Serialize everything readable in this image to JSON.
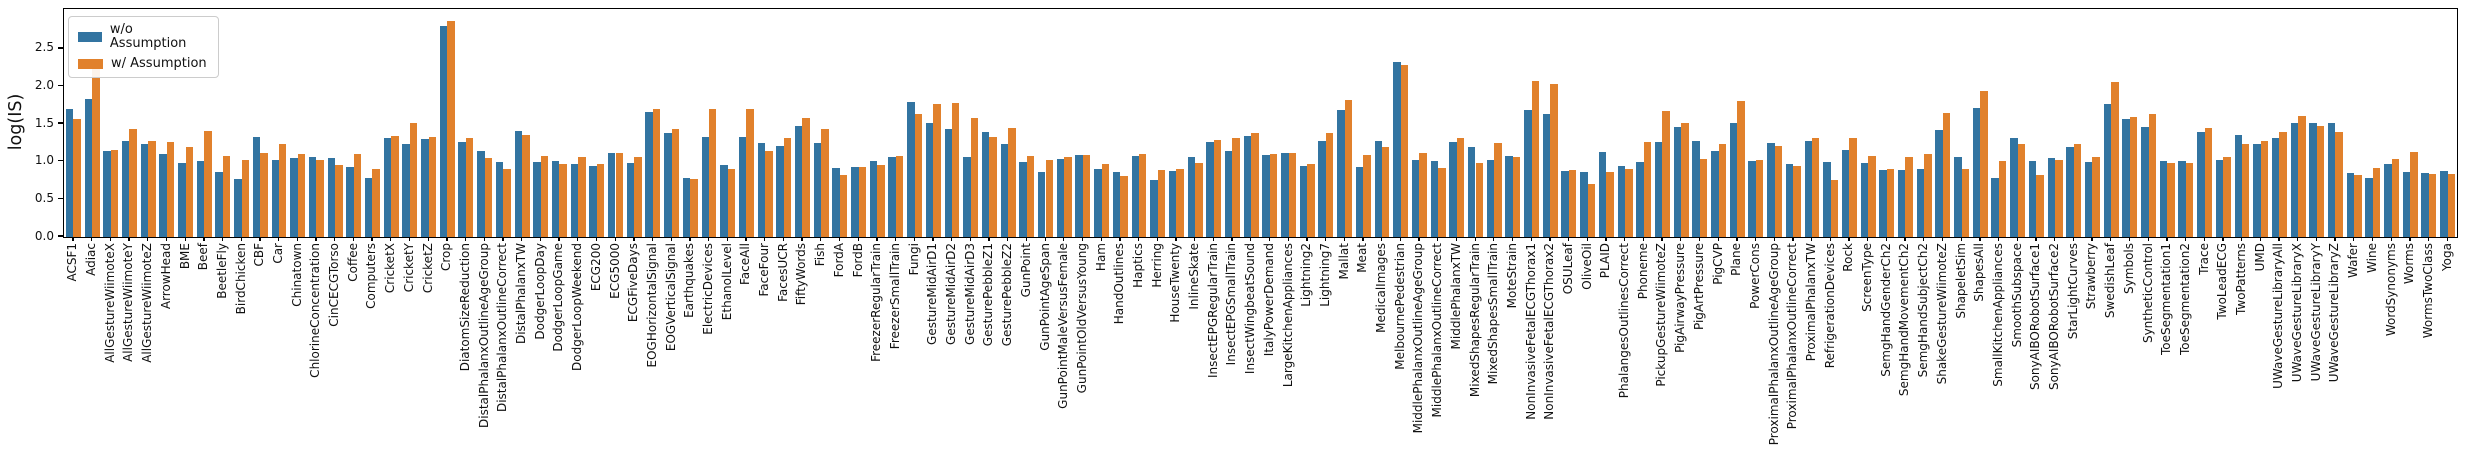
{
  "chart_data": {
    "type": "bar",
    "title": "",
    "xlabel": "",
    "ylabel": "log(IS)",
    "ylim": [
      0,
      3.03
    ],
    "yticks": [
      0.0,
      0.5,
      1.0,
      1.5,
      2.0,
      2.5
    ],
    "grid": false,
    "legend_position": "upper-left",
    "colors": [
      "#3274a1",
      "#e1812c"
    ],
    "categories": [
      "ACSF1",
      "Adiac",
      "AllGestureWiimoteX",
      "AllGestureWiimoteY",
      "AllGestureWiimoteZ",
      "ArrowHead",
      "BME",
      "Beef",
      "BeetleFly",
      "BirdChicken",
      "CBF",
      "Car",
      "Chinatown",
      "ChlorineConcentration",
      "CinCECGTorso",
      "Coffee",
      "Computers",
      "CricketX",
      "CricketY",
      "CricketZ",
      "Crop",
      "DiatomSizeReduction",
      "DistalPhalanxOutlineAgeGroup",
      "DistalPhalanxOutlineCorrect",
      "DistalPhalanxTW",
      "DodgerLoopDay",
      "DodgerLoopGame",
      "DodgerLoopWeekend",
      "ECG200",
      "ECG5000",
      "ECGFiveDays",
      "EOGHorizontalSignal",
      "EOGVerticalSignal",
      "Earthquakes",
      "ElectricDevices",
      "EthanolLevel",
      "FaceAll",
      "FaceFour",
      "FacesUCR",
      "FiftyWords",
      "Fish",
      "FordA",
      "FordB",
      "FreezerRegularTrain",
      "FreezerSmallTrain",
      "Fungi",
      "GestureMidAirD1",
      "GestureMidAirD2",
      "GestureMidAirD3",
      "GesturePebbleZ1",
      "GesturePebbleZ2",
      "GunPoint",
      "GunPointAgeSpan",
      "GunPointMaleVersusFemale",
      "GunPointOldVersusYoung",
      "Ham",
      "HandOutlines",
      "Haptics",
      "Herring",
      "HouseTwenty",
      "InlineSkate",
      "InsectEPGRegularTrain",
      "InsectEPGSmallTrain",
      "InsectWingbeatSound",
      "ItalyPowerDemand",
      "LargeKitchenAppliances",
      "Lightning2",
      "Lightning7",
      "Mallat",
      "Meat",
      "MedicalImages",
      "MelbournePedestrian",
      "MiddlePhalanxOutlineAgeGroup",
      "MiddlePhalanxOutlineCorrect",
      "MiddlePhalanxTW",
      "MixedShapesRegularTrain",
      "MixedShapesSmallTrain",
      "MoteStrain",
      "NonInvasiveFetalECGThorax1",
      "NonInvasiveFetalECGThorax2",
      "OSULeaf",
      "OliveOil",
      "PLAID",
      "PhalangesOutlinesCorrect",
      "Phoneme",
      "PickupGestureWiimoteZ",
      "PigAirwayPressure",
      "PigArtPressure",
      "PigCVP",
      "Plane",
      "PowerCons",
      "ProximalPhalanxOutlineAgeGroup",
      "ProximalPhalanxOutlineCorrect",
      "ProximalPhalanxTW",
      "RefrigerationDevices",
      "Rock",
      "ScreenType",
      "SemgHandGenderCh2",
      "SemgHandMovementCh2",
      "SemgHandSubjectCh2",
      "ShakeGestureWiimoteZ",
      "ShapeletSim",
      "ShapesAll",
      "SmallKitchenAppliances",
      "SmoothSubspace",
      "SonyAIBORobotSurface1",
      "SonyAIBORobotSurface2",
      "StarLightCurves",
      "Strawberry",
      "SwedishLeaf",
      "Symbols",
      "SyntheticControl",
      "ToeSegmentation1",
      "ToeSegmentation2",
      "Trace",
      "TwoLeadECG",
      "TwoPatterns",
      "UMD",
      "UWaveGestureLibraryAll",
      "UWaveGestureLibraryX",
      "UWaveGestureLibraryY",
      "UWaveGestureLibraryZ",
      "Wafer",
      "Wine",
      "WordSynonyms",
      "Worms",
      "WormsTwoClass",
      "Yoga"
    ],
    "series": [
      {
        "name": "w/o Assumption",
        "values": [
          1.7,
          1.83,
          1.14,
          1.28,
          1.24,
          1.11,
          0.99,
          1.01,
          0.86,
          0.77,
          1.33,
          1.02,
          1.05,
          1.06,
          1.05,
          0.93,
          0.78,
          1.31,
          1.24,
          1.3,
          2.8,
          1.26,
          1.15,
          1.0,
          1.41,
          1.0,
          1.01,
          0.97,
          0.94,
          1.12,
          0.98,
          1.66,
          1.38,
          0.79,
          1.33,
          0.96,
          1.33,
          1.25,
          1.21,
          1.47,
          1.25,
          0.92,
          0.93,
          1.01,
          1.06,
          1.8,
          1.51,
          1.44,
          1.07,
          1.4,
          1.23,
          1.0,
          0.87,
          1.04,
          1.09,
          0.9,
          0.86,
          1.08,
          0.76,
          0.88,
          1.06,
          1.26,
          1.15,
          1.34,
          1.09,
          1.12,
          0.94,
          1.28,
          1.69,
          0.93,
          1.27,
          2.32,
          1.02,
          1.01,
          1.26,
          1.2,
          1.03,
          1.08,
          1.69,
          1.64,
          0.88,
          0.86,
          1.13,
          0.95,
          1.0,
          1.26,
          1.46,
          1.27,
          1.15,
          1.51,
          1.01,
          1.25,
          0.97,
          1.28,
          1.0,
          1.16,
          0.99,
          0.89,
          0.89,
          0.91,
          1.42,
          1.06,
          1.72,
          0.78,
          1.32,
          1.01,
          1.05,
          1.2,
          1.0,
          1.77,
          1.57,
          1.46,
          1.01,
          1.01,
          1.39,
          1.03,
          1.35,
          1.24,
          1.31,
          1.52,
          1.52,
          1.52,
          0.85,
          0.78,
          0.97,
          0.87,
          0.85,
          0.88
        ]
      },
      {
        "name": "w/ Assumption",
        "values": [
          1.57,
          2.25,
          1.16,
          1.43,
          1.27,
          1.26,
          1.2,
          1.41,
          1.08,
          1.03,
          1.12,
          1.24,
          1.1,
          1.03,
          0.96,
          1.1,
          0.9,
          1.34,
          1.51,
          1.33,
          2.87,
          1.32,
          1.05,
          0.9,
          1.35,
          1.08,
          0.97,
          1.07,
          0.97,
          1.12,
          1.06,
          1.7,
          1.44,
          0.77,
          1.7,
          0.9,
          1.7,
          1.14,
          1.32,
          1.58,
          1.44,
          0.83,
          0.93,
          0.96,
          1.08,
          1.63,
          1.77,
          1.78,
          1.58,
          1.33,
          1.45,
          1.08,
          1.02,
          1.07,
          1.09,
          0.97,
          0.81,
          1.11,
          0.89,
          0.9,
          0.98,
          1.29,
          1.32,
          1.38,
          1.1,
          1.12,
          0.97,
          1.38,
          1.82,
          1.09,
          1.2,
          2.29,
          1.12,
          0.92,
          1.31,
          0.99,
          1.25,
          1.07,
          2.07,
          2.03,
          0.89,
          0.71,
          0.87,
          0.9,
          1.26,
          1.68,
          1.51,
          1.04,
          1.23,
          1.81,
          1.03,
          1.21,
          0.95,
          1.31,
          0.76,
          1.31,
          1.08,
          0.9,
          1.06,
          1.1,
          1.65,
          0.9,
          1.94,
          1.01,
          1.23,
          0.82,
          1.03,
          1.24,
          1.06,
          2.06,
          1.59,
          1.63,
          0.98,
          0.99,
          1.45,
          1.06,
          1.24,
          1.28,
          1.39,
          1.61,
          1.48,
          1.4,
          0.83,
          0.92,
          1.04,
          1.13,
          0.84,
          0.84
        ]
      }
    ]
  }
}
